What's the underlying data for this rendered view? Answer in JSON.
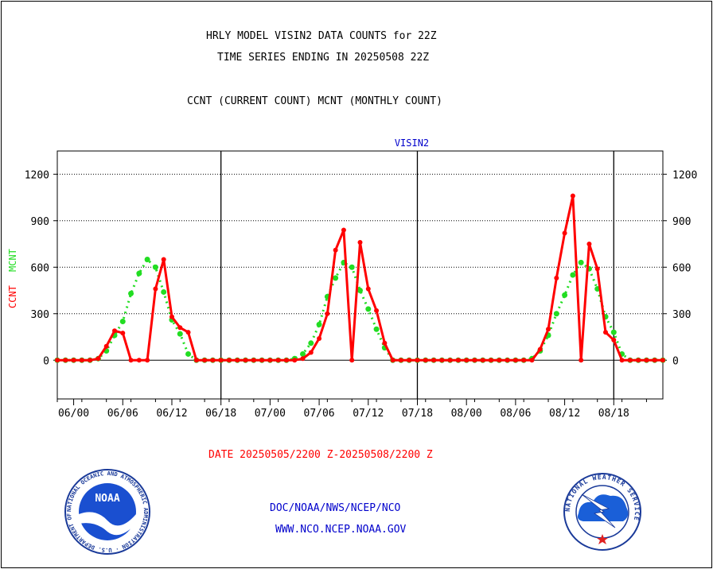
{
  "header": {
    "title_line1": "HRLY MODEL VISIN2 DATA COUNTS for 22Z",
    "title_line2": "TIME SERIES ENDING IN 20250508 22Z",
    "subtitle": "CCNT (CURRENT COUNT) MCNT (MONTHLY COUNT)"
  },
  "footer": {
    "date_range": "DATE 20250505/2200 Z-20250508/2200 Z",
    "org_path": "DOC/NOAA/NWS/NCEP/NCO",
    "website": "WWW.NCO.NCEP.NOAA.GOV",
    "noaa_logo_text": "NOAA",
    "noaa_ring_text": "NATIONAL OCEANIC AND ATMOSPHERIC ADMINISTRATION · U.S. DEPARTMENT OF COMMERCE ·",
    "nws_ring_text": "NATIONAL WEATHER SERVICE"
  },
  "colors": {
    "ccnt": "#ff0000",
    "mcnt": "#22dd22",
    "axis": "#000000",
    "title": "#0000cc"
  },
  "chart_data": {
    "type": "line",
    "title": "VISIN2",
    "ylabel_left_1": "CCNT",
    "ylabel_left_2": "MCNT",
    "ylim": [
      -250,
      1350
    ],
    "yticks": [
      0,
      300,
      600,
      900,
      1200
    ],
    "grid": true,
    "x_tick_labels": [
      "06/00",
      "06/06",
      "06/12",
      "06/18",
      "07/00",
      "07/06",
      "07/12",
      "07/18",
      "08/00",
      "08/06",
      "08/12",
      "08/18"
    ],
    "x_start": "05/22",
    "x_end": "08/22",
    "day_separators": [
      "06/18",
      "07/18",
      "08/18"
    ],
    "series": [
      {
        "name": "CCNT",
        "values": [
          0,
          0,
          0,
          0,
          0,
          10,
          90,
          190,
          175,
          0,
          0,
          0,
          460,
          650,
          280,
          210,
          180,
          0,
          0,
          0,
          0,
          0,
          0,
          0,
          0,
          0,
          0,
          0,
          0,
          0,
          10,
          50,
          140,
          300,
          710,
          840,
          0,
          760,
          460,
          320,
          110,
          0,
          0,
          0,
          0,
          0,
          0,
          0,
          0,
          0,
          0,
          0,
          0,
          0,
          0,
          0,
          0,
          0,
          0,
          70,
          200,
          530,
          820,
          1060,
          0,
          750,
          590,
          180,
          130,
          0,
          0,
          0,
          0,
          0,
          0
        ]
      },
      {
        "name": "MCNT",
        "values": [
          0,
          0,
          0,
          0,
          0,
          10,
          60,
          160,
          250,
          430,
          560,
          650,
          600,
          440,
          260,
          170,
          40,
          0,
          0,
          0,
          0,
          0,
          0,
          0,
          0,
          0,
          0,
          0,
          0,
          10,
          40,
          110,
          230,
          410,
          530,
          630,
          600,
          450,
          330,
          200,
          80,
          0,
          0,
          0,
          0,
          0,
          0,
          0,
          0,
          0,
          0,
          0,
          0,
          0,
          0,
          0,
          0,
          0,
          10,
          60,
          160,
          300,
          420,
          550,
          630,
          590,
          460,
          280,
          180,
          40,
          0,
          0,
          0,
          0,
          0
        ]
      }
    ]
  }
}
